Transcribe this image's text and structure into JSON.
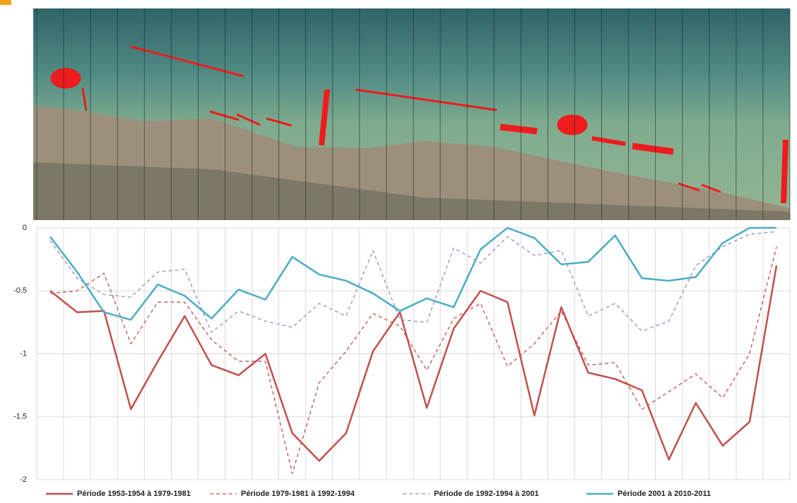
{
  "chart_data": {
    "type": "line",
    "categories": [
      null,
      null,
      null,
      null,
      null,
      null,
      null,
      null,
      null,
      null,
      null,
      null,
      null,
      null,
      null,
      null,
      null,
      null,
      null,
      null,
      null,
      null,
      null,
      null,
      null,
      null,
      null,
      null
    ],
    "ylim": [
      -2,
      0
    ],
    "yticks": [
      0,
      -0.5,
      -1,
      -1.5,
      -2
    ],
    "grid": true,
    "legend": "bottom",
    "series": [
      {
        "name": "Période 1953-1954 à 1979-1981",
        "color": "#c0504d",
        "style": "solid",
        "width": 2.5,
        "values": [
          -0.5,
          -0.67,
          -0.66,
          -1.44,
          -1.06,
          -0.7,
          -1.09,
          -1.17,
          -1.0,
          -1.63,
          -1.85,
          -1.63,
          -0.98,
          -0.67,
          -1.43,
          -0.8,
          -0.5,
          -0.59,
          -1.49,
          -0.63,
          -1.15,
          -1.2,
          -1.29,
          -1.84,
          -1.39,
          -1.73,
          -1.54,
          -0.3
        ]
      },
      {
        "name": "Période 1979-1981 à 1992-1994",
        "color": "#c0504d",
        "style": "dashed",
        "width": 1.3,
        "values": [
          -0.52,
          -0.5,
          -0.36,
          -0.92,
          -0.59,
          -0.59,
          -0.89,
          -1.06,
          -1.06,
          -1.95,
          -1.23,
          -0.98,
          -0.68,
          -0.78,
          -1.13,
          -0.72,
          -0.6,
          -1.1,
          -0.92,
          -0.66,
          -1.09,
          -1.07,
          -1.44,
          -1.3,
          -1.16,
          -1.35,
          -1.0,
          -0.15
        ]
      },
      {
        "name": "Période de 1992-1994 à 2001",
        "color": "#8e90c8",
        "style": "dashed",
        "width": 1.3,
        "values": [
          -0.1,
          -0.4,
          -0.53,
          -0.55,
          -0.35,
          -0.33,
          -0.83,
          -0.66,
          -0.74,
          -0.79,
          -0.6,
          -0.7,
          -0.18,
          -0.73,
          -0.75,
          -0.16,
          -0.28,
          -0.07,
          -0.22,
          -0.18,
          -0.7,
          -0.6,
          -0.82,
          -0.74,
          -0.3,
          -0.15,
          -0.05,
          -0.03
        ]
      },
      {
        "name": "Période 2001 à 2010-2011",
        "color": "#4bacc6",
        "style": "solid",
        "width": 2.5,
        "values": [
          -0.07,
          -0.35,
          -0.67,
          -0.73,
          -0.45,
          -0.54,
          -0.72,
          -0.49,
          -0.57,
          -0.23,
          -0.37,
          -0.42,
          -0.52,
          -0.66,
          -0.56,
          -0.63,
          -0.17,
          0,
          -0.08,
          -0.29,
          -0.27,
          -0.06,
          -0.4,
          -0.42,
          -0.39,
          -0.12,
          0,
          0
        ]
      }
    ]
  }
}
